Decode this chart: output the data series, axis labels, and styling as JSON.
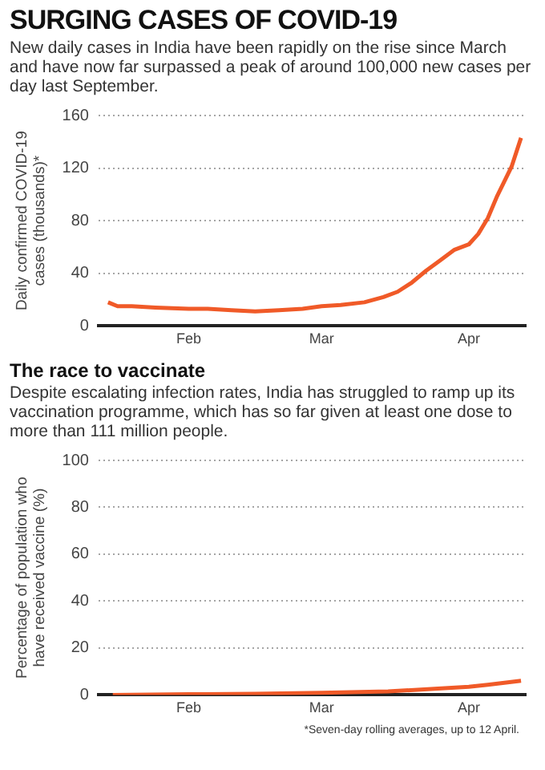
{
  "chart_data": [
    {
      "type": "line",
      "title": "SURGING CASES OF COVID-19",
      "subtitle": "New daily cases in India have been rapidly on the rise since March and have now far surpassed a peak of around 100,000 new cases per day last September.",
      "ylabel": "Daily confirmed COVID-19\ncases (thousands)*",
      "x": [
        "--01-15",
        "--01-17",
        "--01-20",
        "--01-25",
        "--02-01",
        "--02-05",
        "--02-10",
        "--02-15",
        "--02-20",
        "--02-25",
        "--03-01",
        "--03-05",
        "--03-10",
        "--03-14",
        "--03-17",
        "--03-20",
        "--03-23",
        "--03-26",
        "--03-29",
        "--04-01",
        "--04-03",
        "--04-05",
        "--04-07",
        "--04-10",
        "--04-12"
      ],
      "series": [
        {
          "color": "#f05a28",
          "values": [
            18,
            15,
            15,
            14,
            13,
            13,
            12,
            11,
            12,
            13,
            15,
            16,
            18,
            22,
            26,
            33,
            42,
            50,
            58,
            62,
            70,
            82,
            99,
            121,
            143
          ]
        }
      ],
      "xlim": [
        "--01-13",
        "--04-13"
      ],
      "xticks": [
        {
          "value": "--02-01",
          "label": "Feb"
        },
        {
          "value": "--03-01",
          "label": "Mar"
        },
        {
          "value": "--04-01",
          "label": "Apr"
        }
      ],
      "ylim": [
        0,
        160
      ],
      "yticks": [
        0,
        40,
        80,
        120,
        160
      ],
      "grid": "y",
      "legend": false,
      "marker": "none"
    },
    {
      "type": "line",
      "title": "The race to vaccinate",
      "subtitle": "Despite escalating infection rates, India has struggled to ramp up its vaccination programme, which has so far given at least one dose to more than 111 million people.",
      "ylabel": "Percentage of population who\nhave received vaccine (%)",
      "x": [
        "--01-16",
        "--02-01",
        "--02-15",
        "--03-01",
        "--03-15",
        "--04-01",
        "--04-05",
        "--04-12"
      ],
      "series": [
        {
          "color": "#f05a28",
          "values": [
            0,
            0.3,
            0.5,
            0.9,
            1.5,
            3.5,
            4.3,
            6
          ]
        }
      ],
      "xlim": [
        "--01-13",
        "--04-13"
      ],
      "xticks": [
        {
          "value": "--02-01",
          "label": "Feb"
        },
        {
          "value": "--03-01",
          "label": "Mar"
        },
        {
          "value": "--04-01",
          "label": "Apr"
        }
      ],
      "ylim": [
        0,
        100
      ],
      "yticks": [
        0,
        20,
        40,
        60,
        80,
        100
      ],
      "grid": "y",
      "legend": false,
      "marker": "none",
      "annotations": [
        "*Seven-day rolling averages, up to 12 April."
      ]
    }
  ]
}
